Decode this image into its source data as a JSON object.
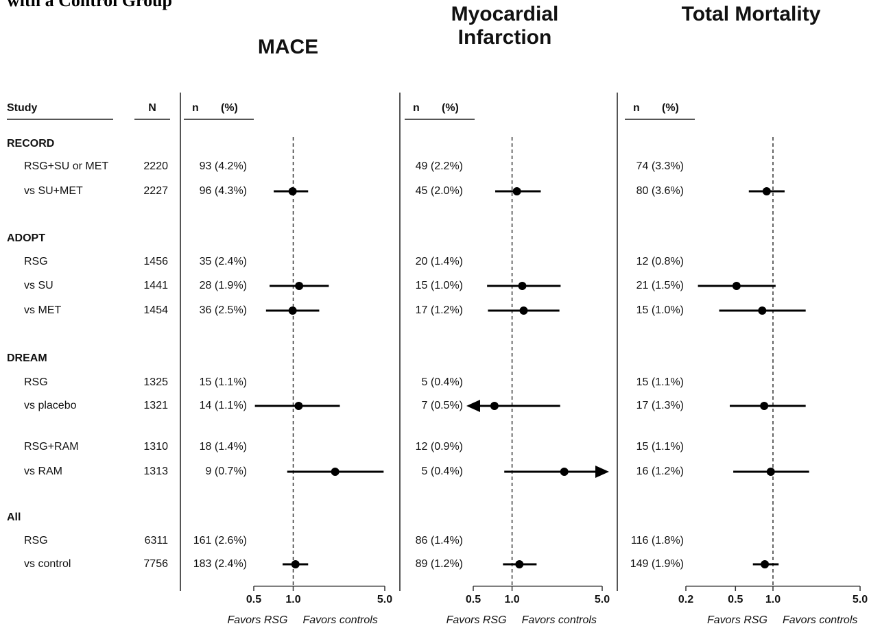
{
  "header": {
    "title": "with a Control Group"
  },
  "table": {
    "headers": {
      "study": "Study",
      "n": "N"
    },
    "groups": [
      {
        "name": "RECORD",
        "rows": [
          {
            "study": "RSG+SU or MET",
            "N": 2220
          },
          {
            "study": "vs SU+MET",
            "N": 2227
          }
        ]
      },
      {
        "name": "ADOPT",
        "rows": [
          {
            "study": "RSG",
            "N": 1456
          },
          {
            "study": "vs SU",
            "N": 1441
          },
          {
            "study": "vs MET",
            "N": 1454
          }
        ]
      },
      {
        "name": "DREAM",
        "rows": [
          {
            "study": "RSG",
            "N": 1325
          },
          {
            "study": "vs placebo",
            "N": 1321
          },
          {
            "study": "RSG+RAM",
            "N": 1310
          },
          {
            "study": "vs RAM",
            "N": 1313
          }
        ]
      },
      {
        "name": "All",
        "rows": [
          {
            "study": "RSG",
            "N": 6311
          },
          {
            "study": "vs control",
            "N": 7756
          }
        ]
      }
    ]
  },
  "chart_data": [
    {
      "type": "forest",
      "title": "MACE",
      "col_n": "n",
      "col_pct": "(%)",
      "counts": [
        "93 (4.2%)",
        "96 (4.3%)",
        "35 (2.4%)",
        "28 (1.9%)",
        "36 (2.5%)",
        "15 (1.1%)",
        "14 (1.1%)",
        "18 (1.4%)",
        "9 (0.7%)",
        "161 (2.6%)",
        "183 (2.4%)"
      ],
      "values": [
        null,
        0.99,
        null,
        1.11,
        0.99,
        null,
        1.1,
        null,
        2.09,
        null,
        1.04
      ],
      "lower": [
        null,
        0.71,
        null,
        0.66,
        0.62,
        null,
        0.51,
        null,
        0.9,
        null,
        0.83
      ],
      "upper": [
        null,
        1.3,
        null,
        1.87,
        1.58,
        null,
        2.27,
        null,
        4.9,
        null,
        1.3
      ],
      "xlim": [
        0.5,
        5
      ],
      "log_x": true,
      "xticks": [
        0.5,
        {
          "value": 1,
          "label": "1.0"
        },
        {
          "value": 5,
          "label": "5.0"
        }
      ],
      "favors_left": "Favors RSG",
      "favors_right": "Favors controls"
    },
    {
      "type": "forest",
      "title": "Myocardial Infarction",
      "col_n": "n",
      "col_pct": "(%)",
      "counts": [
        "49 (2.2%)",
        "45 (2.0%)",
        "20 (1.4%)",
        "15 (1.0%)",
        "17 (1.2%)",
        "5 (0.4%)",
        "7 (0.5%)",
        "12 (0.9%)",
        "5 (0.4%)",
        "86 (1.4%)",
        "89 (1.2%)"
      ],
      "values": [
        null,
        1.09,
        null,
        1.2,
        1.23,
        null,
        0.73,
        null,
        2.54,
        null,
        1.14
      ],
      "lower": [
        null,
        0.74,
        null,
        0.64,
        0.65,
        null,
        0.4,
        null,
        0.87,
        null,
        0.85
      ],
      "upper": [
        null,
        1.67,
        null,
        2.38,
        2.33,
        null,
        2.36,
        null,
        6,
        null,
        1.55
      ],
      "xlim": [
        0.5,
        5
      ],
      "log_x": true,
      "xticks": [
        0.5,
        {
          "value": 1,
          "label": "1.0"
        },
        {
          "value": 5,
          "label": "5.0"
        }
      ],
      "favors_left": "Favors RSG",
      "favors_right": "Favors controls"
    },
    {
      "type": "forest",
      "title": "Total Mortality",
      "col_n": "n",
      "col_pct": "(%)",
      "counts": [
        "74 (3.3%)",
        "80 (3.6%)",
        "12 (0.8%)",
        "21 (1.5%)",
        "15 (1.0%)",
        "15 (1.1%)",
        "17 (1.3%)",
        "15 (1.1%)",
        "16 (1.2%)",
        "116 (1.8%)",
        "149 (1.9%)"
      ],
      "values": [
        null,
        0.89,
        null,
        0.51,
        0.82,
        null,
        0.85,
        null,
        0.96,
        null,
        0.86
      ],
      "lower": [
        null,
        0.64,
        null,
        0.25,
        0.37,
        null,
        0.45,
        null,
        0.48,
        null,
        0.69
      ],
      "upper": [
        null,
        1.24,
        null,
        1.05,
        1.83,
        null,
        1.83,
        null,
        1.95,
        null,
        1.11
      ],
      "xlim": [
        0.2,
        5
      ],
      "log_x": true,
      "xticks": [
        0.2,
        0.5,
        {
          "value": 1,
          "label": "1.0"
        },
        {
          "value": 5,
          "label": "5.0"
        }
      ],
      "favors_left": "Favors RSG",
      "favors_right": "Favors controls"
    }
  ]
}
